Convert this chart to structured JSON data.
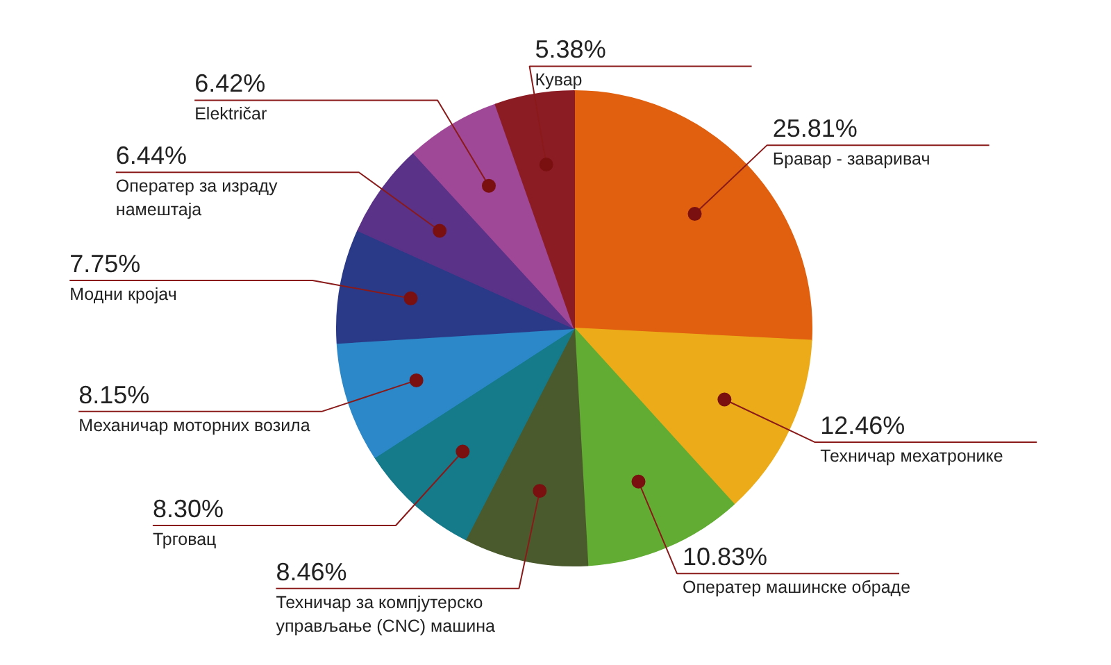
{
  "chart_data": {
    "type": "pie",
    "categories": [
      "Бравар - заваривач",
      "Техничар мехатронике",
      "Оператер машинске обраде",
      "Техничар за компјутерско\nуправљање (CNC) машина",
      "Трговац",
      "Механичар моторних возила",
      "Модни кројач",
      "Оператер за израду\nнамештаја",
      "Električar",
      "Кувар"
    ],
    "values": [
      25.81,
      12.46,
      10.83,
      8.46,
      8.3,
      8.15,
      7.75,
      6.44,
      6.42,
      5.38
    ],
    "value_labels": [
      "25.81%",
      "12.46%",
      "10.83%",
      "8.46%",
      "8.30%",
      "8.15%",
      "7.75%",
      "6.44%",
      "6.42%",
      "5.38%"
    ],
    "colors": [
      "#e06010",
      "#ecac1a",
      "#62ac34",
      "#4a5a2c",
      "#157a8a",
      "#2c88c8",
      "#2a3a88",
      "#5a3288",
      "#a04898",
      "#8c1c24"
    ]
  }
}
